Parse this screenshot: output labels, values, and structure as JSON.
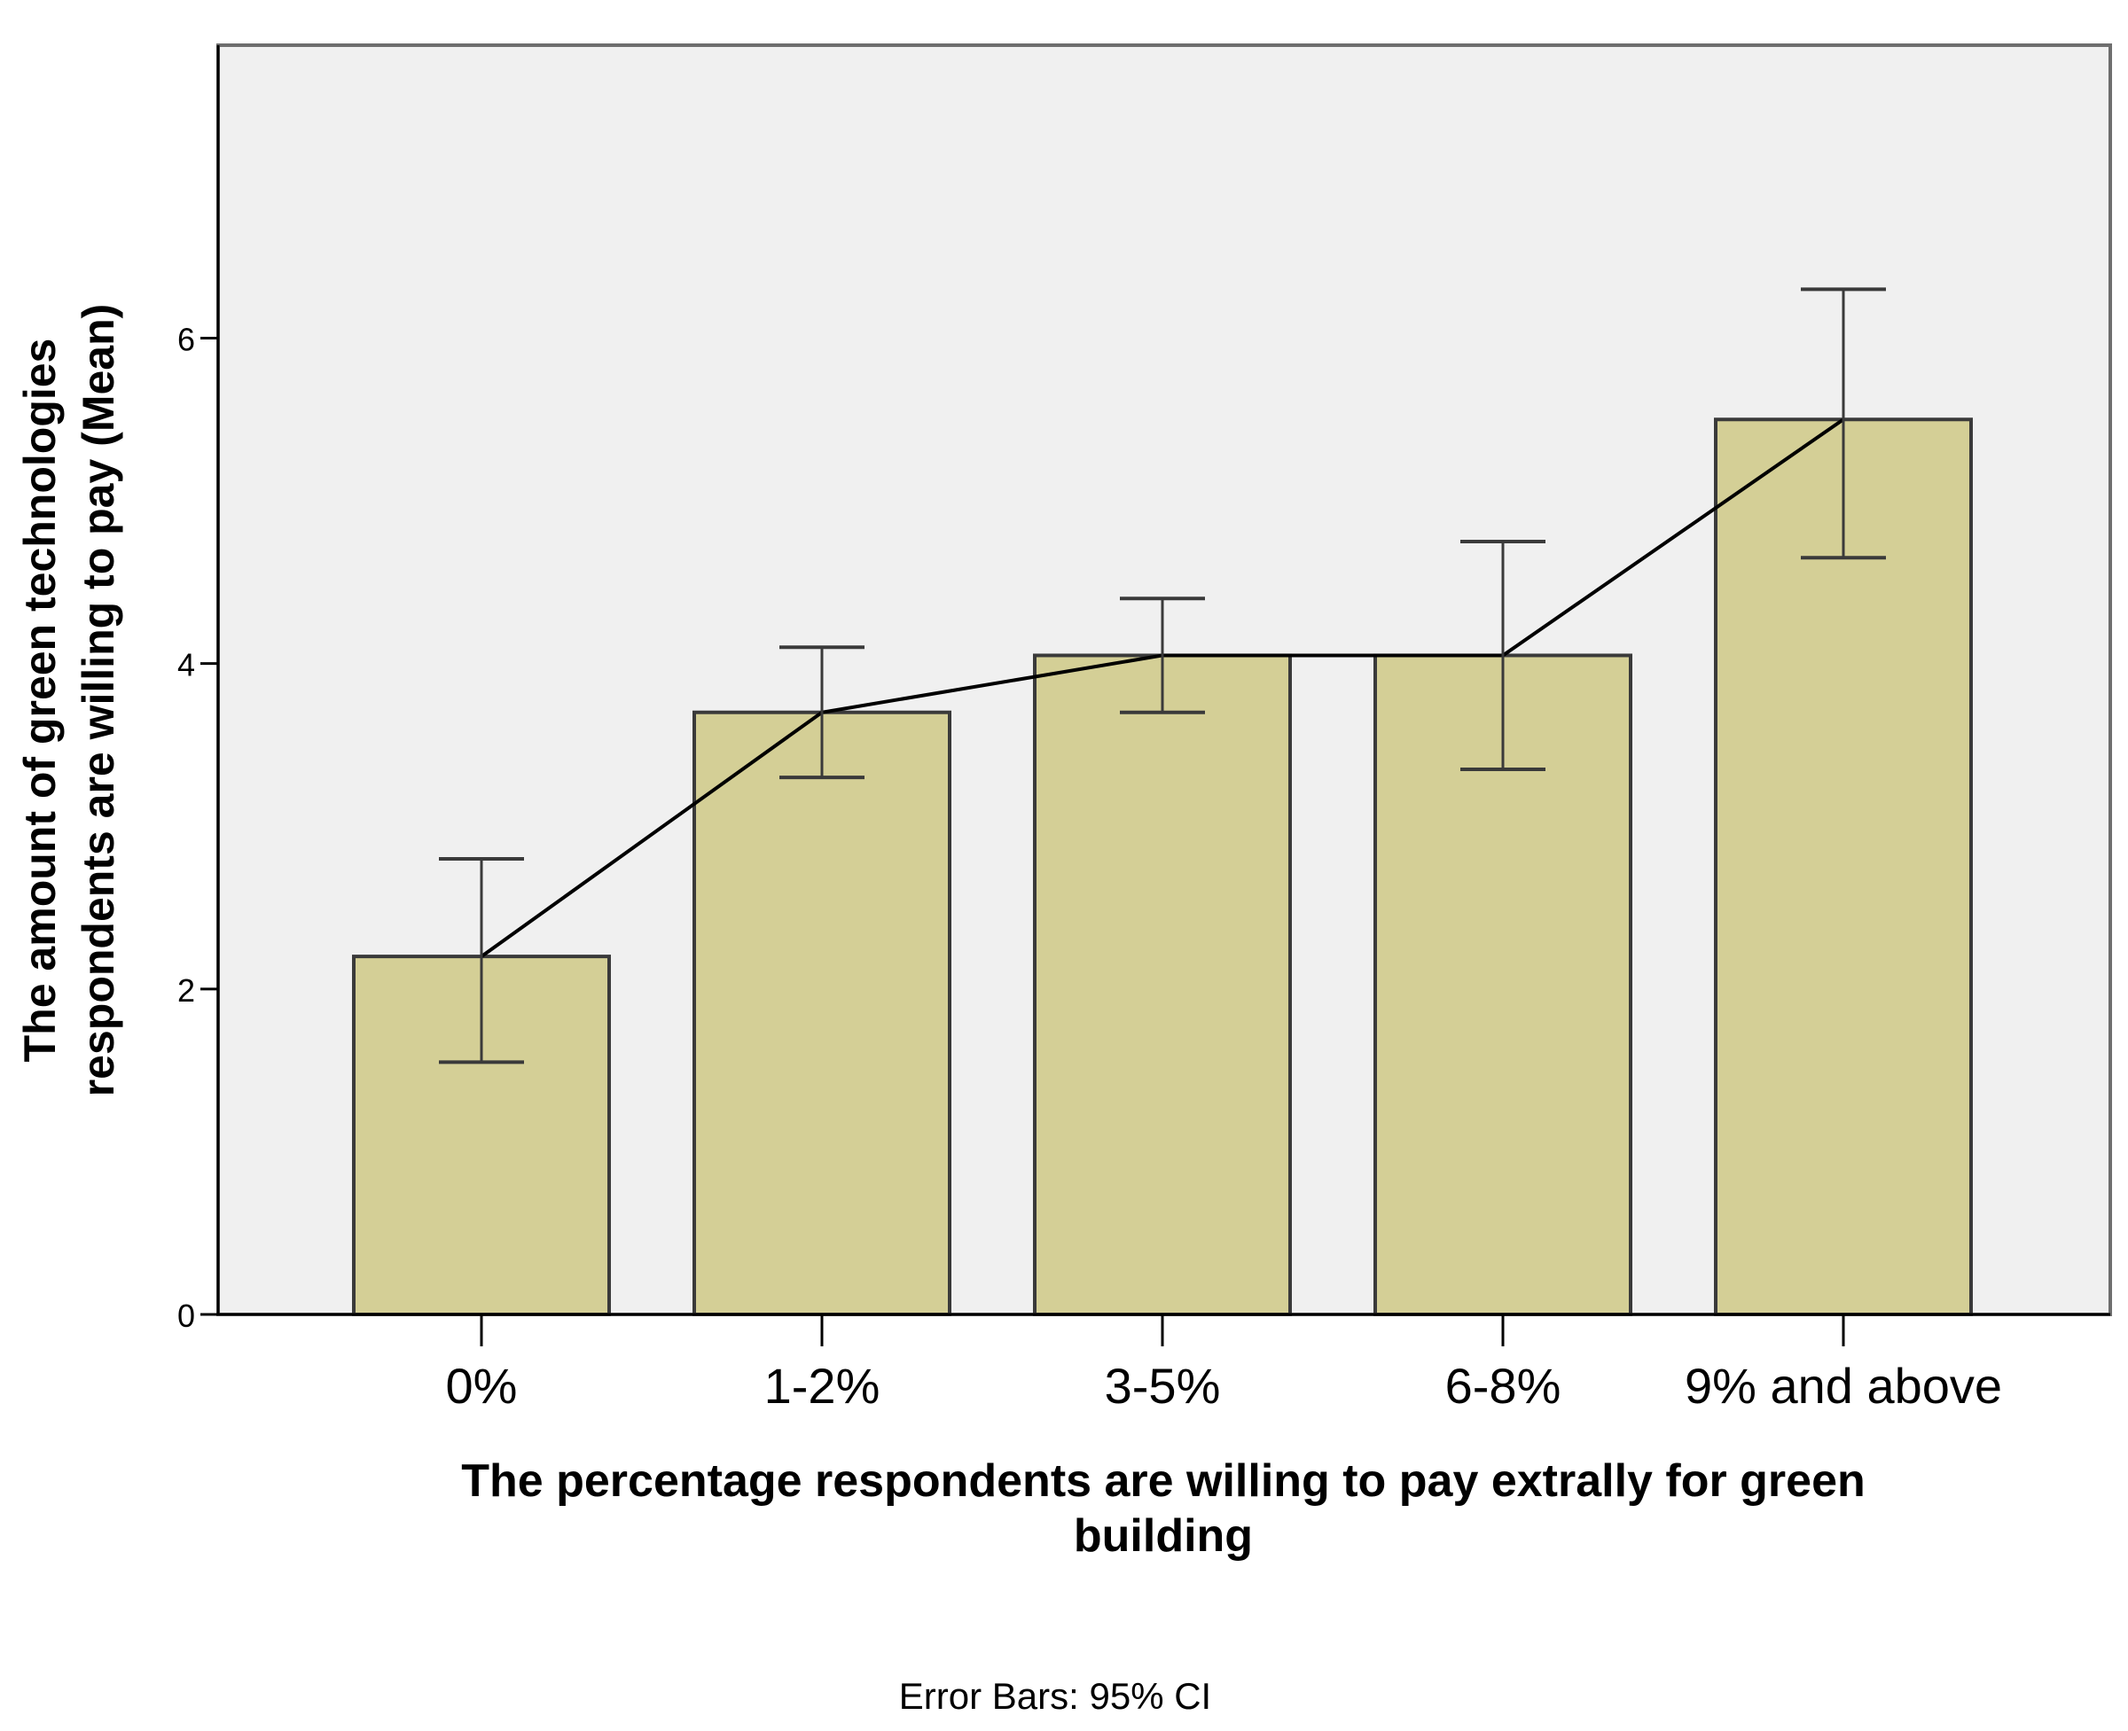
{
  "chart_data": {
    "type": "bar",
    "categories": [
      "0%",
      "1-2%",
      "3-5%",
      "6-8%",
      "9% and above"
    ],
    "values": [
      2.2,
      3.7,
      4.05,
      4.05,
      5.5
    ],
    "error_bars": {
      "label": "Error Bars: 95% CI",
      "lower": [
        1.55,
        3.3,
        3.7,
        3.35,
        4.65
      ],
      "upper": [
        2.8,
        4.1,
        4.4,
        4.75,
        6.3
      ]
    },
    "overlay_line": {
      "type": "line",
      "values": [
        2.2,
        3.7,
        4.05,
        4.05,
        5.5
      ]
    },
    "xlabel_lines": [
      "The percentage respondents are willing to pay extrally for green",
      "building"
    ],
    "ylabel_lines": [
      "The amount of green technologies",
      "respondents are willing to pay (Mean)"
    ],
    "ylim": [
      0,
      7.8
    ],
    "yticks": [
      0,
      2,
      4,
      6
    ],
    "grid": false,
    "colors": {
      "plot_background": "#f0f0f0",
      "bar_fill": "#d4cf96",
      "bar_stroke": "#3a3a3a",
      "line": "#000000",
      "error_bar": "#3a3a3a",
      "frame": "#6e6e6e"
    }
  }
}
